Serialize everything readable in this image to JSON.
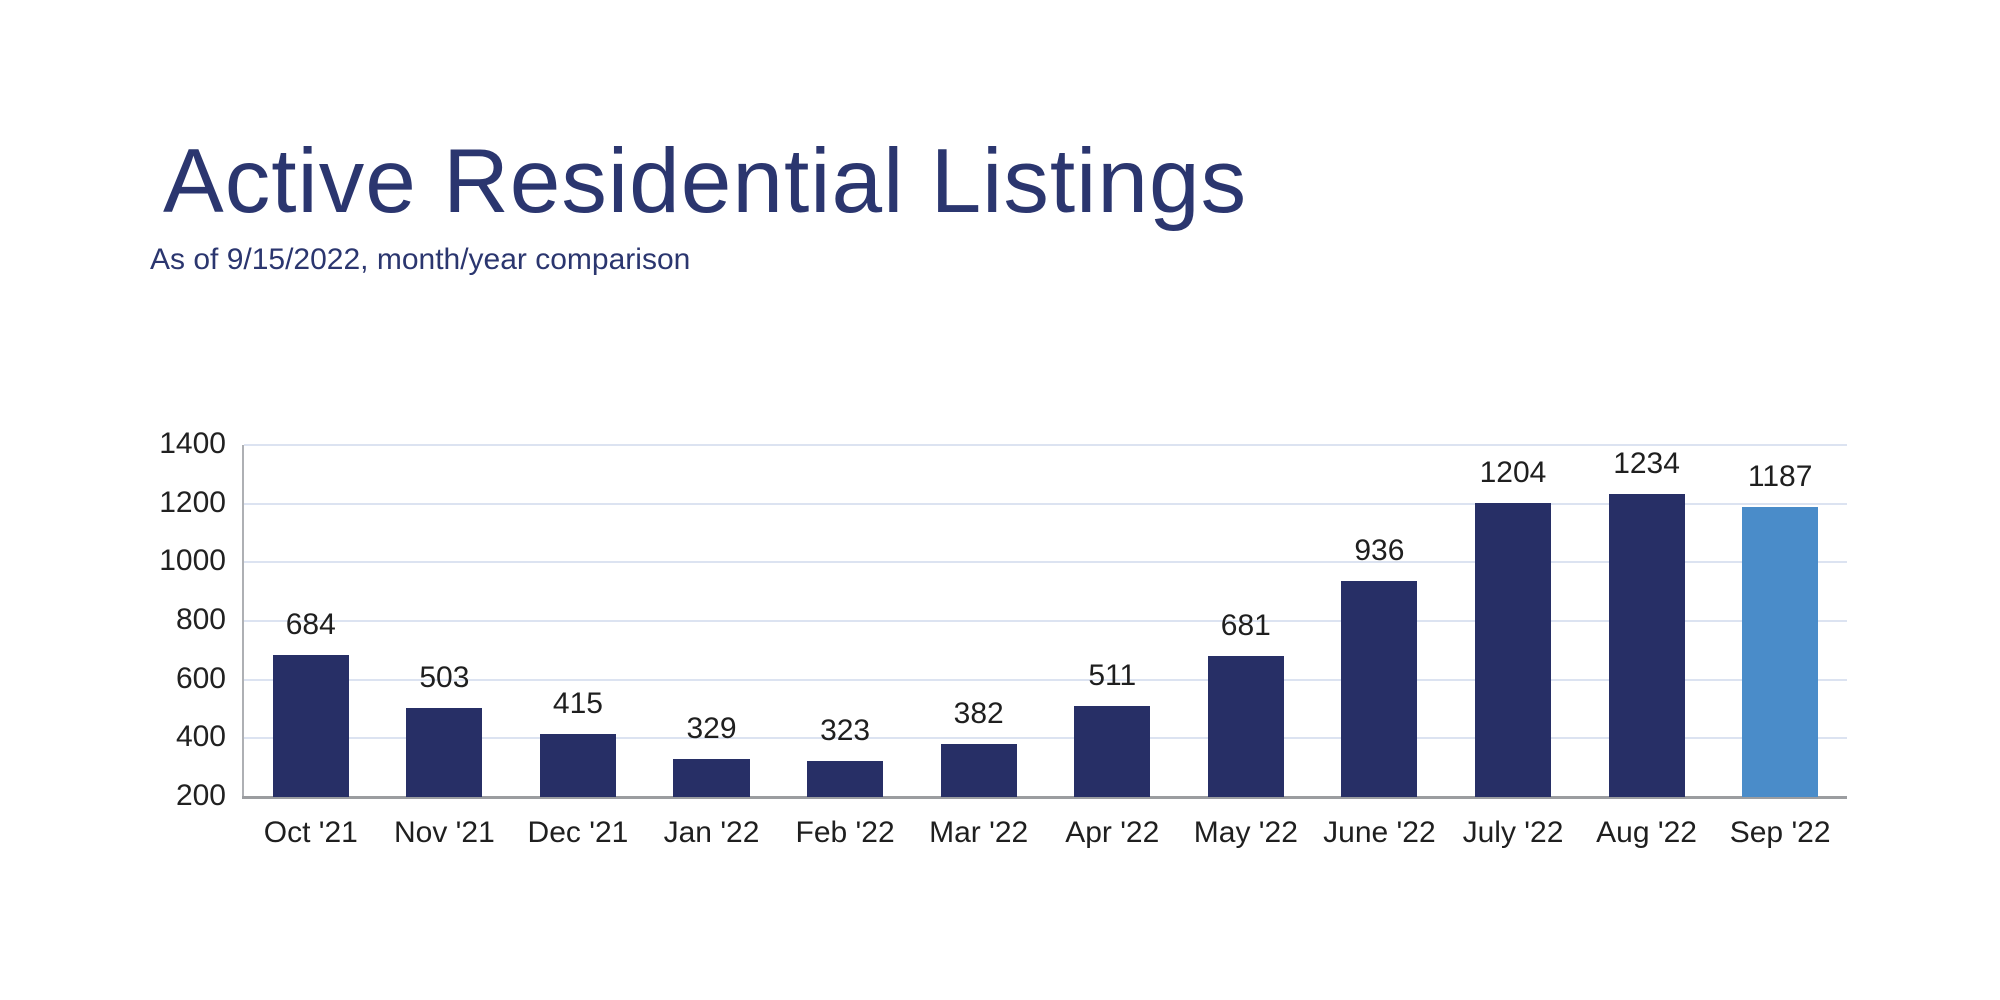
{
  "header": {
    "title": "Active Residential Listings",
    "subtitle": "As of 9/15/2022, month/year comparison"
  },
  "chart_data": {
    "type": "bar",
    "title": "Active Residential Listings",
    "subtitle": "As of 9/15/2022, month/year comparison",
    "categories": [
      "Oct '21",
      "Nov '21",
      "Dec '21",
      "Jan '22",
      "Feb '22",
      "Mar '22",
      "Apr '22",
      "May '22",
      "June '22",
      "July '22",
      "Aug '22",
      "Sep '22"
    ],
    "values": [
      684,
      503,
      415,
      329,
      323,
      382,
      511,
      681,
      936,
      1204,
      1234,
      1187
    ],
    "ylim": [
      200,
      1400
    ],
    "yticks": [
      200,
      400,
      600,
      800,
      1000,
      1200,
      1400
    ],
    "xlabel": "",
    "ylabel": "",
    "grid": "horizontal",
    "legend": "none",
    "data_labels": true,
    "bar_color": "#272f66",
    "highlight_color": "#4a8cc9",
    "highlight_index": 11,
    "gridline_color": "#dce3f1",
    "axis_line_color": "#9b9da0",
    "label_text_color": "#1f1f1f",
    "title_color": "#2b366f"
  }
}
